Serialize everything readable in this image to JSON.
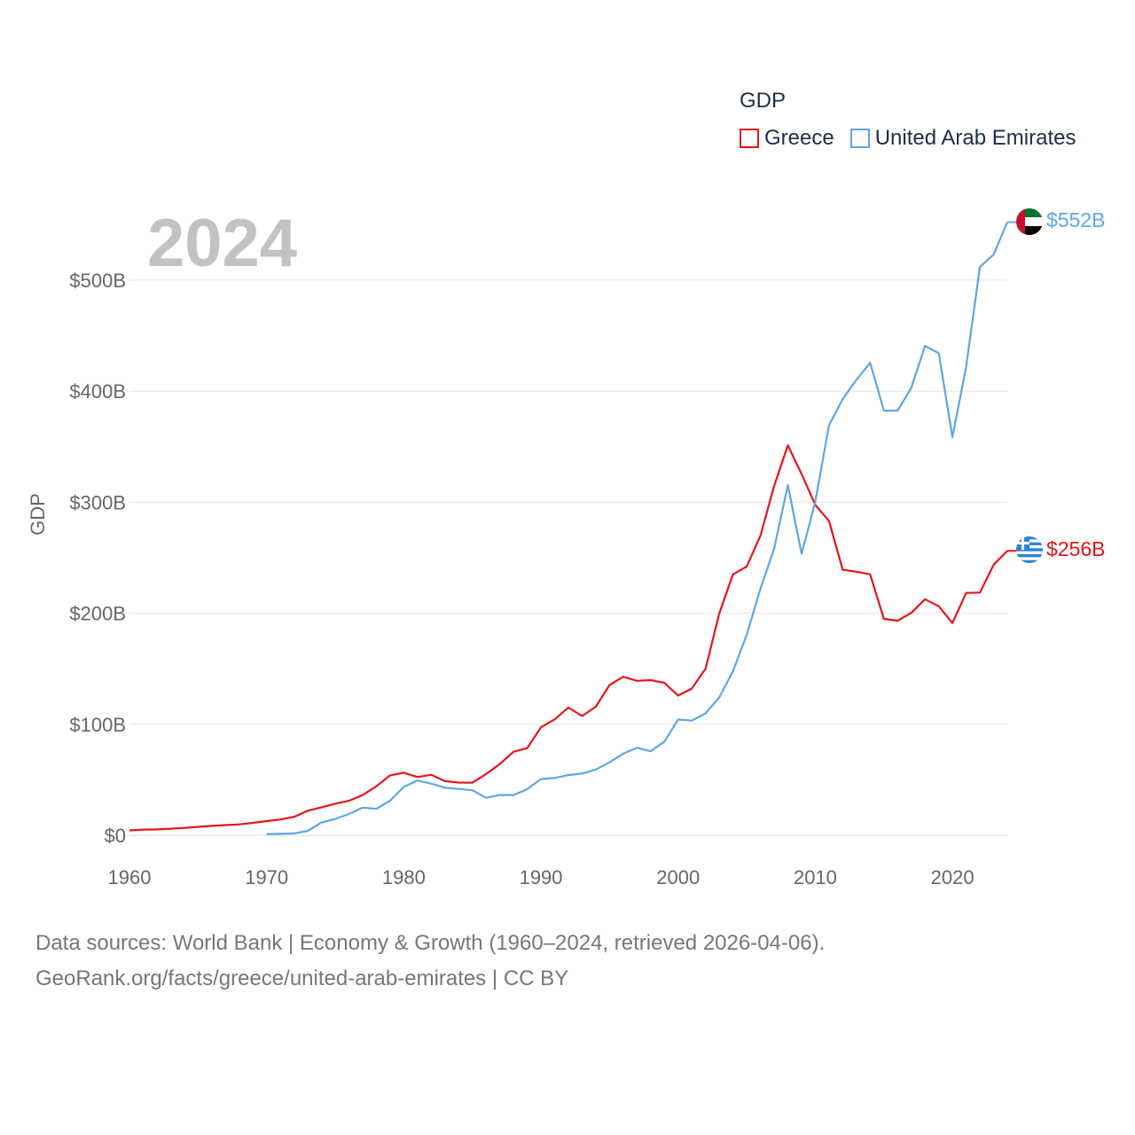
{
  "legend": {
    "title": "GDP",
    "items": [
      {
        "label": "Greece",
        "color": "#e8141a"
      },
      {
        "label": "United Arab Emirates",
        "color": "#5ea6e6"
      }
    ]
  },
  "year_label": "2024",
  "end_labels": {
    "uae": "$552B",
    "greece": "$256B"
  },
  "footer": {
    "line1": "Data sources: World Bank | Economy & Growth (1960–2024, retrieved 2026-04-06).",
    "line2": "GeoRank.org/facts/greece/united-arab-emirates | CC BY"
  },
  "chart_data": {
    "type": "line",
    "title": "GDP",
    "xlabel": "",
    "ylabel": "GDP",
    "xlim": [
      1960,
      2024
    ],
    "ylim": [
      0,
      550
    ],
    "x_ticks": [
      1960,
      1970,
      1980,
      1990,
      2000,
      2010,
      2020
    ],
    "y_ticks": [
      {
        "value": 0,
        "label": "$0"
      },
      {
        "value": 100,
        "label": "$100B"
      },
      {
        "value": 200,
        "label": "$200B"
      },
      {
        "value": 300,
        "label": "$300B"
      },
      {
        "value": 400,
        "label": "$400B"
      },
      {
        "value": 500,
        "label": "$500B"
      }
    ],
    "grid": true,
    "legend_position": "top-right",
    "series": [
      {
        "name": "Greece",
        "color": "#e8141a",
        "x": [
          1960,
          1961,
          1962,
          1963,
          1964,
          1965,
          1966,
          1967,
          1968,
          1969,
          1970,
          1971,
          1972,
          1973,
          1974,
          1975,
          1976,
          1977,
          1978,
          1979,
          1980,
          1981,
          1982,
          1983,
          1984,
          1985,
          1986,
          1987,
          1988,
          1989,
          1990,
          1991,
          1992,
          1993,
          1994,
          1995,
          1996,
          1997,
          1998,
          1999,
          2000,
          2001,
          2002,
          2003,
          2004,
          2005,
          2006,
          2007,
          2008,
          2009,
          2010,
          2011,
          2012,
          2013,
          2014,
          2015,
          2016,
          2017,
          2018,
          2019,
          2020,
          2021,
          2022,
          2023,
          2024
        ],
        "values": [
          4.4,
          5.1,
          5.3,
          5.9,
          6.6,
          7.6,
          8.5,
          9.2,
          9.8,
          11.2,
          12.8,
          14.2,
          16.6,
          22.1,
          25.2,
          28.4,
          31.1,
          36.3,
          44.1,
          54.0,
          56.4,
          52.5,
          54.5,
          48.8,
          47.5,
          47.4,
          55.2,
          64.2,
          75.2,
          78.5,
          97.3,
          104.4,
          115.1,
          107.4,
          115.8,
          135.4,
          142.8,
          139.1,
          139.8,
          137.3,
          125.9,
          132.2,
          150.1,
          199.9,
          235.0,
          242.1,
          270.0,
          314.6,
          351.3,
          325.4,
          297.7,
          283.1,
          239.2,
          237.4,
          235.1,
          195.0,
          193.3,
          200.3,
          212.6,
          206.3,
          191.1,
          218.3,
          218.6,
          243.5,
          256.2
        ]
      },
      {
        "name": "United Arab Emirates",
        "color": "#5ea6e6",
        "x": [
          1970,
          1971,
          1972,
          1973,
          1974,
          1975,
          1976,
          1977,
          1978,
          1979,
          1980,
          1981,
          1982,
          1983,
          1984,
          1985,
          1986,
          1987,
          1988,
          1989,
          1990,
          1991,
          1992,
          1993,
          1994,
          1995,
          1996,
          1997,
          1998,
          1999,
          2000,
          2001,
          2002,
          2003,
          2004,
          2005,
          2006,
          2007,
          2008,
          2009,
          2010,
          2011,
          2012,
          2013,
          2014,
          2015,
          2016,
          2017,
          2018,
          2019,
          2020,
          2021,
          2022,
          2023,
          2024
        ],
        "values": [
          1.0,
          1.3,
          1.7,
          4.0,
          11.5,
          14.7,
          19.2,
          24.9,
          23.8,
          31.2,
          43.6,
          49.3,
          46.6,
          42.8,
          41.8,
          40.6,
          33.8,
          36.3,
          36.3,
          41.5,
          50.7,
          51.6,
          54.2,
          55.6,
          59.3,
          65.7,
          73.6,
          78.8,
          75.7,
          84.4,
          104.3,
          103.3,
          109.8,
          124.3,
          147.8,
          180.6,
          222.1,
          258.0,
          315.5,
          253.5,
          300.2,
          369.3,
          393.0,
          410.2,
          425.6,
          382.6,
          382.4,
          403.0,
          440.8,
          434.3,
          358.7,
          422.2,
          512.0,
          523.0,
          552.3
        ]
      }
    ]
  }
}
